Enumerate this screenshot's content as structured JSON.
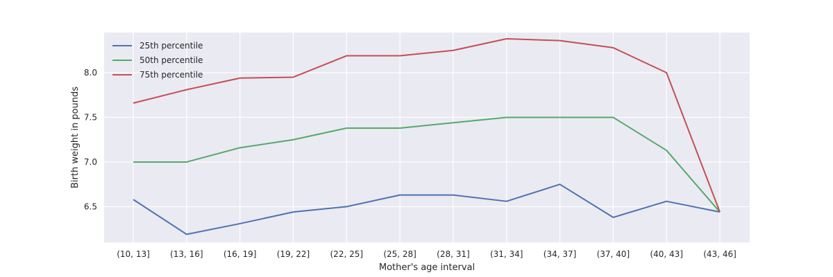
{
  "chart_data": {
    "type": "line",
    "xlabel": "Mother's age interval",
    "ylabel": "Birth weight in pounds",
    "categories": [
      "(10, 13]",
      "(13, 16]",
      "(16, 19]",
      "(19, 22]",
      "(22, 25]",
      "(25, 28]",
      "(28, 31]",
      "(31, 34]",
      "(34, 37]",
      "(37, 40]",
      "(40, 43]",
      "(43, 46]"
    ],
    "ylim": [
      6.1,
      8.45
    ],
    "yticks": [
      6.5,
      7.0,
      7.5,
      8.0
    ],
    "grid": true,
    "legend_position": "top-left",
    "series": [
      {
        "name": "25th percentile",
        "color": "#4c72b0",
        "values": [
          6.58,
          6.19,
          6.31,
          6.44,
          6.5,
          6.63,
          6.63,
          6.56,
          6.75,
          6.38,
          6.56,
          6.44
        ]
      },
      {
        "name": "50th percentile",
        "color": "#55a868",
        "values": [
          7.0,
          7.0,
          7.16,
          7.25,
          7.38,
          7.38,
          7.44,
          7.5,
          7.5,
          7.5,
          7.13,
          6.44
        ]
      },
      {
        "name": "75th percentile",
        "color": "#c44e52",
        "values": [
          7.66,
          7.81,
          7.94,
          7.95,
          8.19,
          8.19,
          8.25,
          8.38,
          8.36,
          8.28,
          8.0,
          6.44
        ]
      }
    ]
  }
}
